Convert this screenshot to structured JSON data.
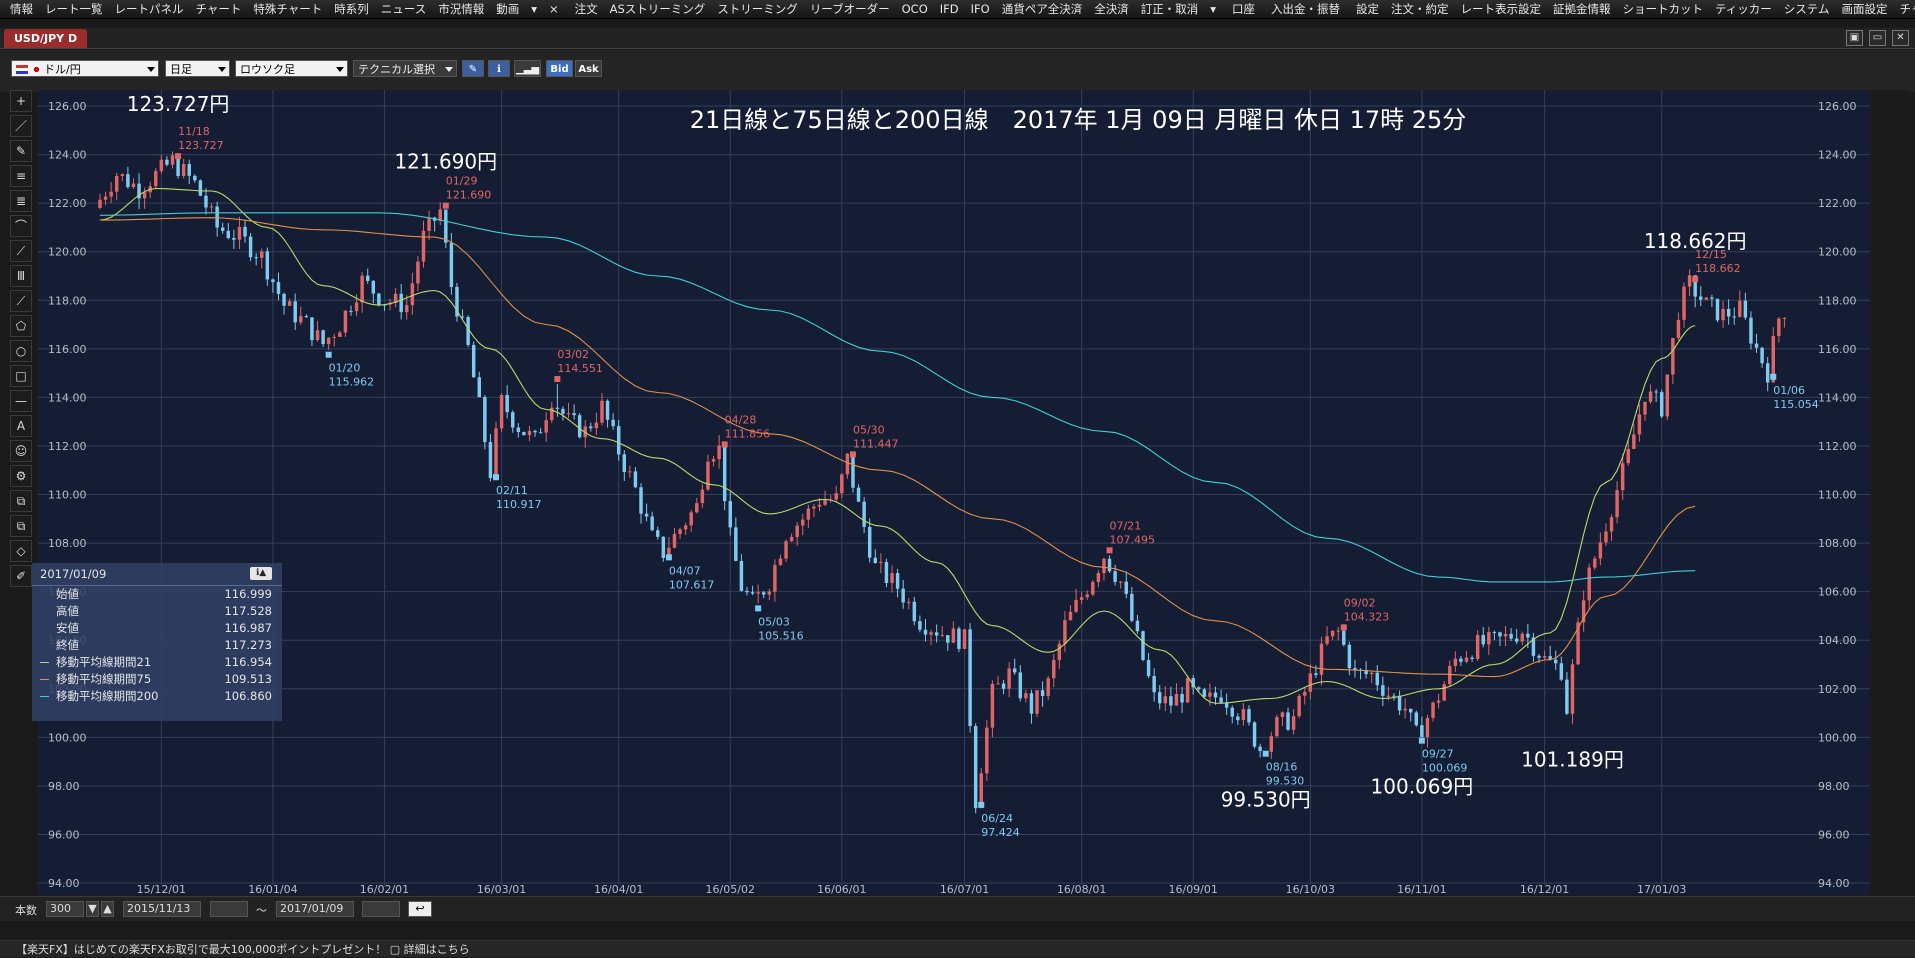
{
  "menu": {
    "items": [
      "情報",
      "レート一覧",
      "レートパネル",
      "チャート",
      "特殊チャート",
      "時系列",
      "ニュース",
      "市況情報",
      "動画",
      "▾",
      "×",
      "注文",
      "ASストリーミング",
      "ストリーミング",
      "リーブオーダー",
      "OCO",
      "IFD",
      "IFO",
      "通貨ペア全決済",
      "全決済",
      "訂正・取消",
      "▾",
      "口座",
      "入出金・振替",
      "設定",
      "注文・約定",
      "レート表示設定",
      "証拠金情報",
      "ショートカット",
      "ティッカー",
      "システム",
      "画面設定",
      "チャート",
      "▾"
    ]
  },
  "window": {
    "tab_label": "USD/JPY D",
    "controls": [
      "▣",
      "▭",
      "✕"
    ]
  },
  "toolbar": {
    "pair": "ドル/円",
    "timeframe": "日足",
    "chart_type": "ロウソク足",
    "technical": "テクニカル選択",
    "bid": "Bid",
    "ask": "Ask"
  },
  "tools": [
    "+",
    "／",
    "✎",
    "≡",
    "≣",
    "⌒",
    "⟋",
    "Ⅲ",
    "⟋",
    "⬠",
    "○",
    "□",
    "—",
    "A",
    "☺",
    "⚙",
    "⧉",
    "⧉",
    "◇",
    "✐"
  ],
  "chart": {
    "headline": "21日線と75日線と200日線　2017年 1月 09日 月曜日 休日 17時 25分",
    "big_labels": [
      {
        "text": "123.727円",
        "day": 14,
        "price": 123.727,
        "anchor": "above"
      },
      {
        "text": "121.690円",
        "day": 62,
        "price": 121.69,
        "anchor": "above"
      },
      {
        "text": "99.530円",
        "day": 209,
        "price": 99.53,
        "anchor": "below"
      },
      {
        "text": "100.069円",
        "day": 237,
        "price": 100.069,
        "anchor": "below"
      },
      {
        "text": "101.189円",
        "day": 264,
        "price": 101.189,
        "anchor": "below"
      },
      {
        "text": "118.662円",
        "day": 286,
        "price": 118.662,
        "anchor": "above"
      }
    ],
    "colors": {
      "bull": "#e06565",
      "bear": "#7fcaf0",
      "ma21": "#bcd96a",
      "ma75": "#e0914a",
      "ma200": "#40d0d8",
      "grid": "#34405a",
      "bg": "#141d33"
    }
  },
  "chart_data": {
    "type": "candlestick",
    "title": "21日線と75日線と200日線　2017年 1月 09日 月曜日 休日 17時 25分",
    "ylim": [
      94,
      126
    ],
    "yticks": [
      "126.00",
      "124.00",
      "122.00",
      "120.00",
      "118.00",
      "116.00",
      "114.00",
      "112.00",
      "110.00",
      "108.00",
      "106.00",
      "104.00",
      "102.00",
      "100.00",
      "98.00",
      "96.00",
      "94.00"
    ],
    "x_ticks": [
      {
        "label": "15/12/01",
        "day": 11
      },
      {
        "label": "16/01/04",
        "day": 31
      },
      {
        "label": "16/02/01",
        "day": 51
      },
      {
        "label": "16/03/01",
        "day": 72
      },
      {
        "label": "16/04/01",
        "day": 93
      },
      {
        "label": "16/05/02",
        "day": 113
      },
      {
        "label": "16/06/01",
        "day": 133
      },
      {
        "label": "16/07/01",
        "day": 155
      },
      {
        "label": "16/08/01",
        "day": 176
      },
      {
        "label": "16/09/01",
        "day": 196
      },
      {
        "label": "16/10/03",
        "day": 217
      },
      {
        "label": "16/11/01",
        "day": 237
      },
      {
        "label": "16/12/01",
        "day": 259
      },
      {
        "label": "17/01/03",
        "day": 280
      }
    ],
    "series": [
      {
        "name": "移動平均線期間21",
        "points": [
          [
            0,
            121.3
          ],
          [
            10,
            122.6
          ],
          [
            20,
            122.5
          ],
          [
            30,
            121.0
          ],
          [
            40,
            118.6
          ],
          [
            50,
            117.8
          ],
          [
            60,
            118.4
          ],
          [
            70,
            116.0
          ],
          [
            80,
            113.5
          ],
          [
            90,
            112.3
          ],
          [
            100,
            111.5
          ],
          [
            110,
            110.4
          ],
          [
            120,
            109.2
          ],
          [
            130,
            109.8
          ],
          [
            140,
            108.7
          ],
          [
            150,
            107.2
          ],
          [
            160,
            104.6
          ],
          [
            170,
            103.5
          ],
          [
            180,
            105.2
          ],
          [
            190,
            103.6
          ],
          [
            200,
            101.4
          ],
          [
            210,
            101.6
          ],
          [
            220,
            102.3
          ],
          [
            230,
            101.6
          ],
          [
            240,
            102.0
          ],
          [
            250,
            103.0
          ],
          [
            260,
            104.3
          ],
          [
            270,
            110.5
          ],
          [
            280,
            115.6
          ],
          [
            286,
            116.954
          ]
        ]
      },
      {
        "name": "移動平均線期間75",
        "points": [
          [
            0,
            121.3
          ],
          [
            20,
            121.4
          ],
          [
            40,
            120.9
          ],
          [
            60,
            120.6
          ],
          [
            80,
            117.0
          ],
          [
            100,
            114.2
          ],
          [
            120,
            112.5
          ],
          [
            140,
            111.0
          ],
          [
            160,
            109.0
          ],
          [
            180,
            107.0
          ],
          [
            200,
            104.8
          ],
          [
            220,
            102.8
          ],
          [
            240,
            102.6
          ],
          [
            250,
            102.5
          ],
          [
            260,
            103.2
          ],
          [
            270,
            105.8
          ],
          [
            286,
            109.513
          ]
        ]
      },
      {
        "name": "移動平均線期間200",
        "points": [
          [
            0,
            121.5
          ],
          [
            20,
            121.6
          ],
          [
            50,
            121.6
          ],
          [
            80,
            120.6
          ],
          [
            100,
            119.0
          ],
          [
            120,
            117.6
          ],
          [
            140,
            115.9
          ],
          [
            160,
            114.0
          ],
          [
            180,
            112.6
          ],
          [
            200,
            110.5
          ],
          [
            220,
            108.2
          ],
          [
            240,
            106.6
          ],
          [
            250,
            106.4
          ],
          [
            260,
            106.4
          ],
          [
            270,
            106.6
          ],
          [
            286,
            106.86
          ]
        ]
      }
    ],
    "candles_path": [
      [
        0,
        121.8
      ],
      [
        4,
        123.2
      ],
      [
        8,
        122.6
      ],
      [
        14,
        123.727
      ],
      [
        18,
        122.8
      ],
      [
        22,
        121.0
      ],
      [
        26,
        120.6
      ],
      [
        30,
        119.8
      ],
      [
        34,
        117.8
      ],
      [
        38,
        117.0
      ],
      [
        41,
        116.2
      ],
      [
        44,
        117.0
      ],
      [
        48,
        118.8
      ],
      [
        52,
        118.0
      ],
      [
        56,
        117.8
      ],
      [
        59,
        120.6
      ],
      [
        62,
        121.69
      ],
      [
        64,
        118.6
      ],
      [
        67,
        116.0
      ],
      [
        69,
        113.6
      ],
      [
        71,
        110.917
      ],
      [
        73,
        113.8
      ],
      [
        76,
        112.8
      ],
      [
        79,
        112.2
      ],
      [
        82,
        114.0
      ],
      [
        85,
        113.0
      ],
      [
        88,
        112.6
      ],
      [
        91,
        113.6
      ],
      [
        94,
        111.8
      ],
      [
        97,
        110.2
      ],
      [
        100,
        108.2
      ],
      [
        102,
        107.617
      ],
      [
        105,
        108.6
      ],
      [
        108,
        109.5
      ],
      [
        110,
        111.8
      ],
      [
        112,
        111.856
      ],
      [
        114,
        108.2
      ],
      [
        116,
        106.2
      ],
      [
        118,
        105.516
      ],
      [
        121,
        106.4
      ],
      [
        124,
        108.4
      ],
      [
        127,
        109.0
      ],
      [
        130,
        109.8
      ],
      [
        133,
        109.8
      ],
      [
        135,
        111.447
      ],
      [
        137,
        109.5
      ],
      [
        140,
        107.0
      ],
      [
        144,
        106.2
      ],
      [
        148,
        104.8
      ],
      [
        152,
        104.3
      ],
      [
        156,
        104.0
      ],
      [
        158,
        97.424
      ],
      [
        161,
        101.8
      ],
      [
        164,
        102.6
      ],
      [
        168,
        101.2
      ],
      [
        171,
        102.2
      ],
      [
        174,
        104.6
      ],
      [
        178,
        106.2
      ],
      [
        181,
        107.495
      ],
      [
        184,
        106.4
      ],
      [
        187,
        104.0
      ],
      [
        190,
        101.6
      ],
      [
        193,
        101.4
      ],
      [
        196,
        102.0
      ],
      [
        199,
        101.4
      ],
      [
        202,
        101.8
      ],
      [
        206,
        100.8
      ],
      [
        209,
        99.53
      ],
      [
        212,
        100.5
      ],
      [
        215,
        100.8
      ],
      [
        218,
        102.4
      ],
      [
        221,
        104.0
      ],
      [
        223,
        104.323
      ],
      [
        226,
        102.6
      ],
      [
        229,
        102.6
      ],
      [
        232,
        101.8
      ],
      [
        235,
        101.2
      ],
      [
        237,
        100.069
      ],
      [
        240,
        101.2
      ],
      [
        244,
        103.2
      ],
      [
        248,
        103.8
      ],
      [
        252,
        104.0
      ],
      [
        256,
        104.4
      ],
      [
        260,
        103.2
      ],
      [
        263,
        102.8
      ],
      [
        264,
        101.189
      ],
      [
        267,
        106.0
      ],
      [
        271,
        108.8
      ],
      [
        275,
        111.6
      ],
      [
        278,
        114.2
      ],
      [
        281,
        113.6
      ],
      [
        284,
        117.6
      ],
      [
        286,
        118.662
      ],
      [
        289,
        117.8
      ],
      [
        292,
        117.4
      ],
      [
        295,
        117.6
      ],
      [
        298,
        116.0
      ],
      [
        300,
        115.054
      ],
      [
        302,
        117.273
      ]
    ],
    "markers": [
      {
        "date": "11/18",
        "value": "123.727",
        "type": "high",
        "day": 14
      },
      {
        "date": "01/20",
        "value": "115.962",
        "type": "low",
        "day": 41
      },
      {
        "date": "01/29",
        "value": "121.690",
        "type": "high",
        "day": 62
      },
      {
        "date": "02/11",
        "value": "110.917",
        "type": "low",
        "day": 71
      },
      {
        "date": "03/02",
        "value": "114.551",
        "type": "high",
        "day": 82
      },
      {
        "date": "04/07",
        "value": "107.617",
        "type": "low",
        "day": 102
      },
      {
        "date": "04/28",
        "value": "111.856",
        "type": "high",
        "day": 112
      },
      {
        "date": "05/03",
        "value": "105.516",
        "type": "low",
        "day": 118
      },
      {
        "date": "05/30",
        "value": "111.447",
        "type": "high",
        "day": 135
      },
      {
        "date": "06/24",
        "value": "97.424",
        "type": "low",
        "day": 158
      },
      {
        "date": "07/21",
        "value": "107.495",
        "type": "high",
        "day": 181
      },
      {
        "date": "08/16",
        "value": "99.530",
        "type": "low",
        "day": 209
      },
      {
        "date": "09/02",
        "value": "104.323",
        "type": "high",
        "day": 223
      },
      {
        "date": "09/27",
        "value": "100.069",
        "type": "low",
        "day": 237
      },
      {
        "date": "12/15",
        "value": "118.662",
        "type": "high",
        "day": 286
      },
      {
        "date": "01/06",
        "value": "115.054",
        "type": "low",
        "day": 300
      }
    ]
  },
  "info_box": {
    "date": "2017/01/09",
    "rows": [
      {
        "label": "始値",
        "value": "116.999"
      },
      {
        "label": "高値",
        "value": "117.528"
      },
      {
        "label": "安値",
        "value": "116.987"
      },
      {
        "label": "終値",
        "value": "117.273"
      },
      {
        "label": "移動平均線期間21",
        "value": "116.954",
        "color": "#bcd96a"
      },
      {
        "label": "移動平均線期間75",
        "value": "109.513",
        "color": "#e0914a"
      },
      {
        "label": "移動平均線期間200",
        "value": "106.860",
        "color": "#40d0d8"
      }
    ]
  },
  "bottom": {
    "count_label": "本数",
    "count_value": "300",
    "from_date": "2015/11/13",
    "tilde": "〜",
    "to_date": "2017/01/09"
  },
  "status": "【楽天FX】はじめての楽天FXお取引で最大100,000ポイントプレゼント！ ▢ 詳細はこちら"
}
